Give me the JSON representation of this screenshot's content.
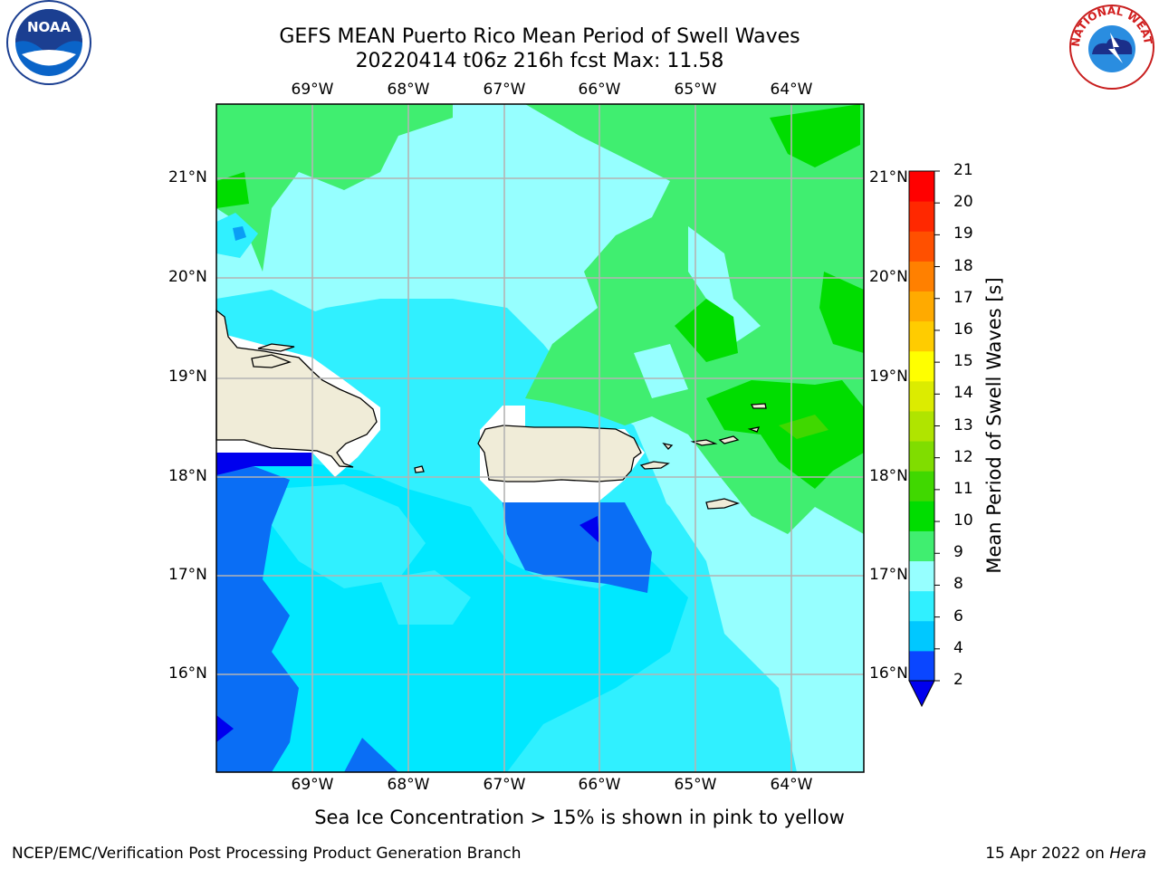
{
  "title": {
    "line1": "GEFS MEAN Puerto Rico Mean Period of Swell Waves",
    "line2": "20220414 t06z 216h fcst   Max: 11.58"
  },
  "axes": {
    "lon_labels": [
      "69°W",
      "68°W",
      "67°W",
      "66°W",
      "65°W",
      "64°W"
    ],
    "lat_labels": [
      "21°N",
      "20°N",
      "19°N",
      "18°N",
      "17°N",
      "16°N"
    ],
    "lon_range": [
      -70.0,
      -63.25
    ],
    "lat_range": [
      15.0,
      21.75
    ]
  },
  "colorbar": {
    "label": "Mean Period of Swell Waves [s]",
    "ticks": [
      "2",
      "4",
      "6",
      "8",
      "9",
      "10",
      "11",
      "12",
      "13",
      "14",
      "15",
      "16",
      "17",
      "18",
      "19",
      "20",
      "21"
    ],
    "colors": [
      "#0a46ff",
      "#00c8ff",
      "#30f0ff",
      "#96ffff",
      "#40ee70",
      "#00dd00",
      "#40d800",
      "#80dd00",
      "#b0e400",
      "#dcec00",
      "#ffff00",
      "#ffcc00",
      "#ffaa00",
      "#ff8000",
      "#ff5000",
      "#ff2800",
      "#ff0000"
    ],
    "extend_min_color": "#0000ee"
  },
  "footer": {
    "sea_ice_note": "Sea Ice Concentration > 15% is shown in pink to yellow",
    "left": "NCEP/EMC/Verification Post Processing Product Generation Branch",
    "right_date": "15 Apr 2022 on",
    "right_host": "Hera"
  },
  "logos": {
    "noaa": "NOAA",
    "nws": "NATIONAL WEATHER SERVICE"
  }
}
